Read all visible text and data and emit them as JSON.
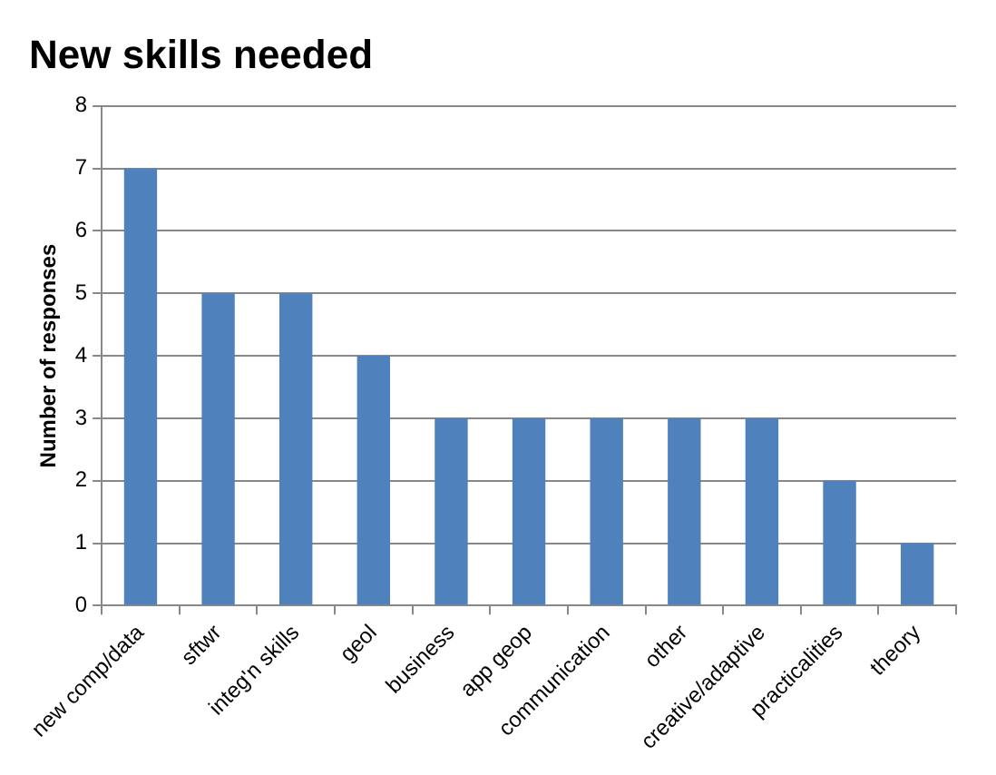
{
  "chart_data": {
    "type": "bar",
    "title": "New skills needed",
    "ylabel": "Number of responses",
    "categories": [
      "new comp/data",
      "sftwr",
      "integ'n skills",
      "geol",
      "business",
      "app geop",
      "communication",
      "other",
      "creative/adaptive",
      "practicalities",
      "theory"
    ],
    "values": [
      7,
      5,
      5,
      4,
      3,
      3,
      3,
      3,
      3,
      2,
      1
    ],
    "color": "#4f81bd",
    "ylim": [
      0,
      8
    ],
    "yticks": [
      0,
      1,
      2,
      3,
      4,
      5,
      6,
      7,
      8
    ],
    "grid": "y",
    "legend": false
  }
}
